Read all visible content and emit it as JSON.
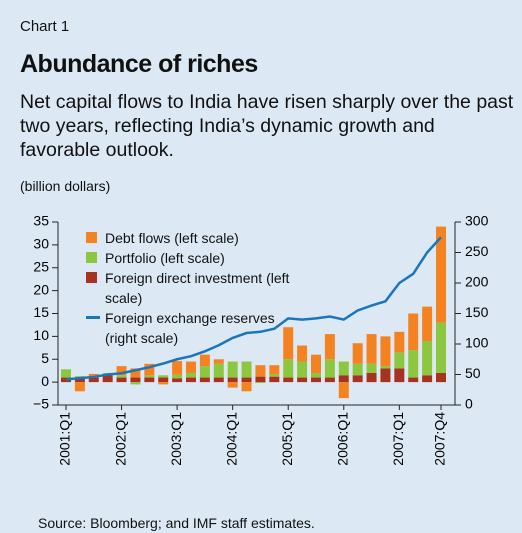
{
  "kicker": "Chart 1",
  "title": "Abundance of riches",
  "subtitle": "Net capital flows to India have risen sharply over the past two years, reflecting India’s dynamic growth and favorable outlook.",
  "source": "Source: Bloomberg; and IMF staff estimates.",
  "chart_data": {
    "type": "bar",
    "stacked": true,
    "y_label": "(billion dollars)",
    "categories": [
      "2001:Q1",
      null,
      null,
      null,
      "2002:Q1",
      null,
      null,
      null,
      "2003:Q1",
      null,
      null,
      null,
      "2004:Q1",
      null,
      null,
      null,
      "2005:Q1",
      null,
      null,
      null,
      "2006:Q1",
      null,
      null,
      null,
      "2007:Q1",
      null,
      null,
      "2007:Q4"
    ],
    "series": [
      {
        "name": "Debt flows (left scale)",
        "color": "#f58220",
        "values": [
          0,
          -2,
          0.5,
          0,
          2,
          2,
          2.5,
          -0.5,
          3,
          2.5,
          2.5,
          1,
          -1.2,
          -2,
          2.5,
          2,
          7,
          3.5,
          4,
          5.5,
          -3.5,
          4.5,
          6.5,
          6.5,
          4.5,
          8,
          7.5,
          21
        ]
      },
      {
        "name": "Portfolio (left scale)",
        "color": "#8dc63f",
        "values": [
          1.8,
          0.5,
          0.3,
          0.5,
          0.5,
          -0.5,
          0.5,
          0.5,
          0.8,
          1,
          2.5,
          3,
          3.5,
          3.5,
          -0.2,
          0.5,
          4,
          3.5,
          1,
          4,
          3,
          2.5,
          2,
          0.5,
          3.5,
          6,
          7.5,
          11
        ]
      },
      {
        "name": "Foreign direct investment (left scale)",
        "color": "#a6321f",
        "values": [
          1,
          0.8,
          1,
          1.5,
          1,
          1,
          1,
          1,
          0.8,
          1,
          1,
          1,
          1,
          1,
          1.2,
          1.2,
          1,
          1,
          1,
          1,
          1.5,
          1.5,
          2,
          3,
          3,
          1,
          1.5,
          2
        ]
      },
      {
        "name": "Foreign exchange reserves (right scale)",
        "color": "#1a75bb",
        "axis": "y2",
        "values": [
          42,
          44,
          46,
          50,
          52,
          57,
          62,
          68,
          75,
          80,
          88,
          98,
          110,
          118,
          120,
          125,
          142,
          140,
          142,
          145,
          140,
          155,
          163,
          170,
          200,
          215,
          250,
          275
        ]
      }
    ],
    "ylim": [
      -5,
      35
    ],
    "yticks": [
      {
        "value": -5,
        "label": "−5"
      },
      0,
      5,
      10,
      15,
      20,
      25,
      30,
      35
    ],
    "y2lim": [
      0,
      300
    ],
    "y2ticks": [
      0,
      50,
      100,
      150,
      200,
      250,
      300
    ]
  }
}
